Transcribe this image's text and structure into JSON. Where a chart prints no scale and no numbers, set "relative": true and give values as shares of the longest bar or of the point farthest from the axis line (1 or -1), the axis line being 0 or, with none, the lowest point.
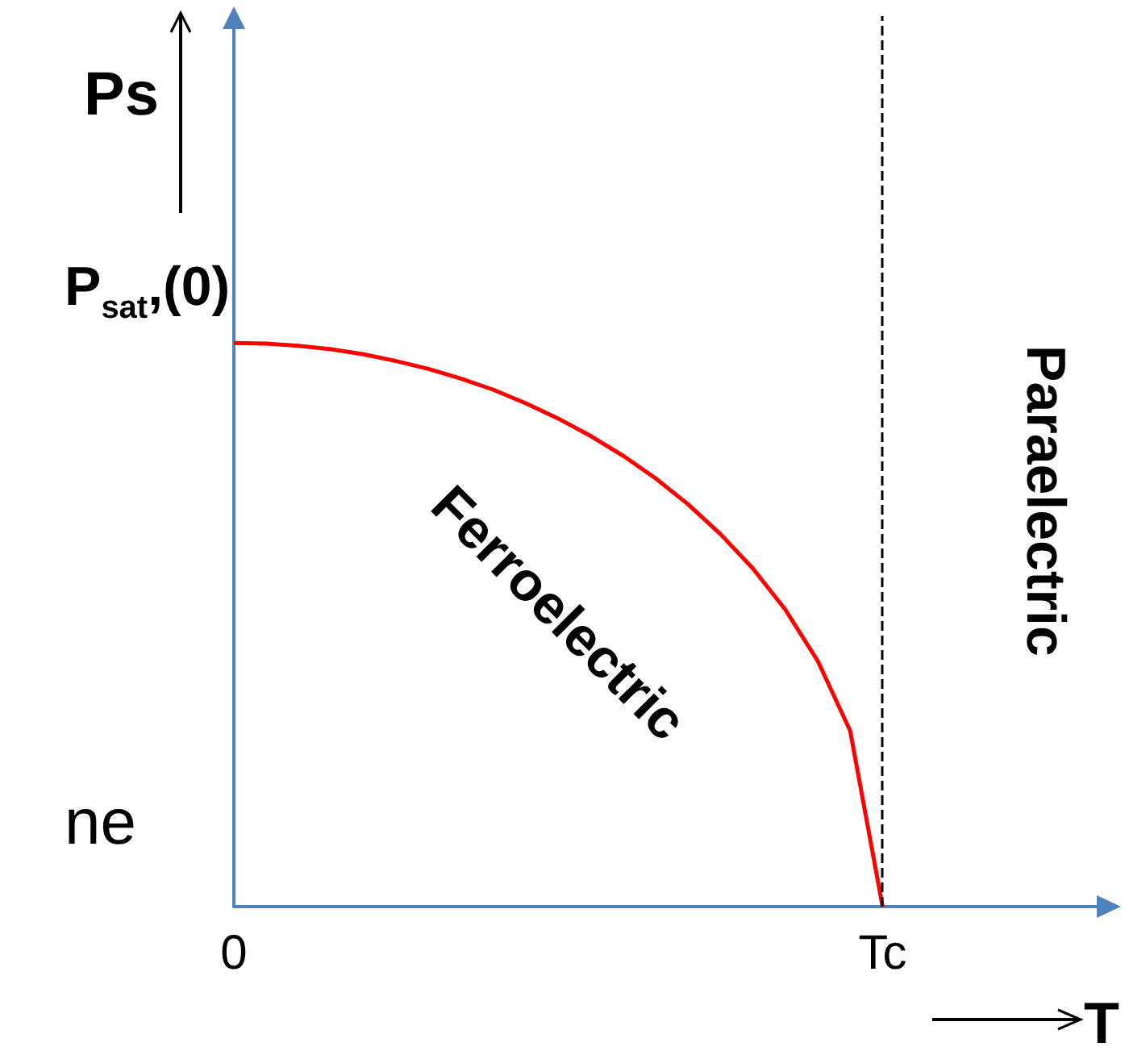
{
  "chart_data": {
    "type": "line",
    "relative": true,
    "xlabel": "T",
    "ylabel": "Ps",
    "categories": [
      "0",
      null,
      null,
      null,
      null,
      null,
      null,
      null,
      null,
      null,
      null,
      null,
      null,
      null,
      null,
      null,
      null,
      null,
      null,
      null,
      "Tc",
      null,
      null,
      null,
      null,
      null,
      null,
      null
    ],
    "series": [
      {
        "color": "#ff0000",
        "values": [
          1,
          0.999,
          0.995,
          0.989,
          0.98,
          0.968,
          0.954,
          0.937,
          0.917,
          0.893,
          0.866,
          0.835,
          0.8,
          0.76,
          0.714,
          0.661,
          0.6,
          0.527,
          0.436,
          0.312,
          0,
          null,
          null,
          null,
          null,
          null,
          null,
          null
        ]
      }
    ],
    "ref_lines": [
      {
        "axis": "x",
        "value": "Tc",
        "color": "#000000",
        "line_style": "dashed"
      }
    ],
    "annotations": [
      {
        "text": "P$_{sat}$,(0)",
        "x": "0",
        "y": 1
      },
      "Ferroelectric",
      "Paraelectric",
      "ne"
    ],
    "grid": false,
    "marker": "none",
    "line_style": "solid"
  }
}
